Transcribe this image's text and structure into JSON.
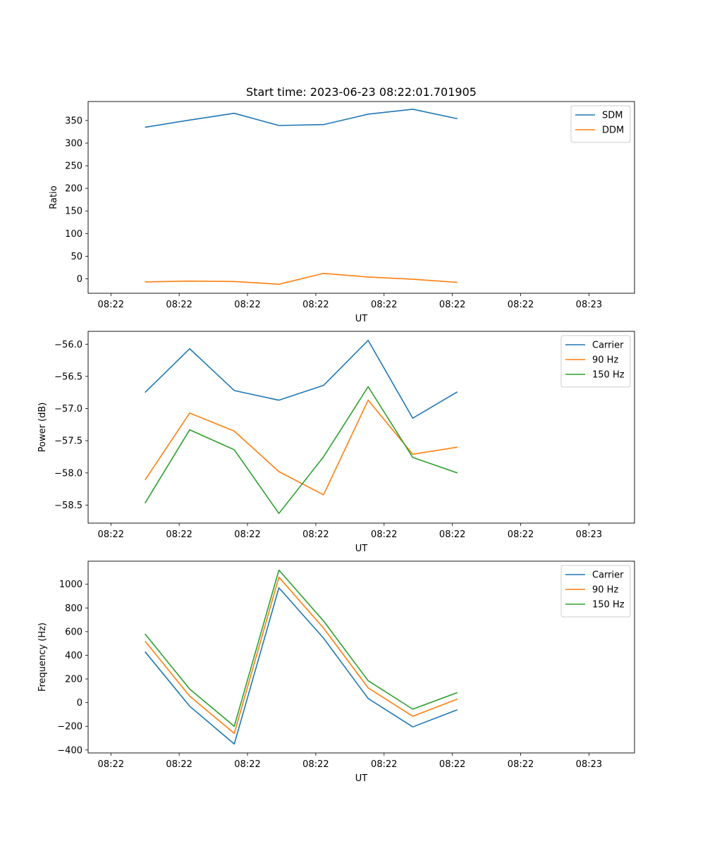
{
  "figure": {
    "title": "Start time: 2023-06-23 08:22:01.701905"
  },
  "chart_data": [
    {
      "type": "line",
      "title": "Start time: 2023-06-23 08:22:01.701905",
      "xlabel": "UT",
      "ylabel": "Ratio",
      "xlim": [
        0,
        12
      ],
      "ylim": [
        -32,
        392
      ],
      "x_ticks": [
        {
          "v": 0.5,
          "label": "08:22"
        },
        {
          "v": 2.0,
          "label": "08:22"
        },
        {
          "v": 3.5,
          "label": "08:22"
        },
        {
          "v": 5.0,
          "label": "08:22"
        },
        {
          "v": 6.5,
          "label": "08:22"
        },
        {
          "v": 8.0,
          "label": "08:22"
        },
        {
          "v": 9.5,
          "label": "08:22"
        },
        {
          "v": 11.0,
          "label": "08:23"
        }
      ],
      "y_ticks": [
        0,
        50,
        100,
        150,
        200,
        250,
        300,
        350
      ],
      "x": [
        1.25,
        2.23,
        3.21,
        4.19,
        5.17,
        6.15,
        7.13,
        8.11
      ],
      "series": [
        {
          "name": "SDM",
          "color": "#1f77b4",
          "values": [
            335,
            351,
            366,
            339,
            341,
            364,
            375,
            354
          ]
        },
        {
          "name": "DDM",
          "color": "#ff7f0e",
          "values": [
            -7,
            -5,
            -6,
            -12,
            12,
            4,
            -1,
            -8
          ]
        }
      ],
      "legend": "top-right",
      "grid": false
    },
    {
      "type": "line",
      "title": "",
      "xlabel": "UT",
      "ylabel": "Power (dB)",
      "xlim": [
        0,
        12
      ],
      "ylim": [
        -58.78,
        -55.8
      ],
      "x_ticks": [
        {
          "v": 0.5,
          "label": "08:22"
        },
        {
          "v": 2.0,
          "label": "08:22"
        },
        {
          "v": 3.5,
          "label": "08:22"
        },
        {
          "v": 5.0,
          "label": "08:22"
        },
        {
          "v": 6.5,
          "label": "08:22"
        },
        {
          "v": 8.0,
          "label": "08:22"
        },
        {
          "v": 9.5,
          "label": "08:22"
        },
        {
          "v": 11.0,
          "label": "08:23"
        }
      ],
      "y_ticks": [
        -58.5,
        -58.0,
        -57.5,
        -57.0,
        -56.5,
        -56.0
      ],
      "y_tick_labels": [
        "−58.5",
        "−58.0",
        "−57.5",
        "−57.0",
        "−56.5",
        "−56.0"
      ],
      "x": [
        1.25,
        2.23,
        3.21,
        4.19,
        5.17,
        6.15,
        7.13,
        8.11
      ],
      "series": [
        {
          "name": "Carrier",
          "color": "#1f77b4",
          "values": [
            -56.75,
            -56.07,
            -56.72,
            -56.87,
            -56.64,
            -55.94,
            -57.15,
            -56.74
          ]
        },
        {
          "name": "90 Hz",
          "color": "#ff7f0e",
          "values": [
            -58.11,
            -57.07,
            -57.35,
            -57.98,
            -58.34,
            -56.87,
            -57.71,
            -57.6
          ]
        },
        {
          "name": "150 Hz",
          "color": "#2ca02c",
          "values": [
            -58.47,
            -57.33,
            -57.64,
            -58.63,
            -57.75,
            -56.66,
            -57.76,
            -58.0
          ]
        }
      ],
      "legend": "top-right",
      "grid": false
    },
    {
      "type": "line",
      "title": "",
      "xlabel": "UT",
      "ylabel": "Frequency (Hz)",
      "xlim": [
        0,
        12
      ],
      "ylim": [
        -425,
        1195
      ],
      "x_ticks": [
        {
          "v": 0.5,
          "label": "08:22"
        },
        {
          "v": 2.0,
          "label": "08:22"
        },
        {
          "v": 3.5,
          "label": "08:22"
        },
        {
          "v": 5.0,
          "label": "08:22"
        },
        {
          "v": 6.5,
          "label": "08:22"
        },
        {
          "v": 8.0,
          "label": "08:22"
        },
        {
          "v": 9.5,
          "label": "08:22"
        },
        {
          "v": 11.0,
          "label": "08:23"
        }
      ],
      "y_ticks": [
        -400,
        -200,
        0,
        200,
        400,
        600,
        800,
        1000
      ],
      "y_tick_labels": [
        "−400",
        "−200",
        "0",
        "200",
        "400",
        "600",
        "800",
        "1000"
      ],
      "x": [
        1.25,
        2.23,
        3.21,
        4.19,
        5.17,
        6.15,
        7.13,
        8.11
      ],
      "series": [
        {
          "name": "Carrier",
          "color": "#1f77b4",
          "values": [
            430,
            -30,
            -350,
            970,
            545,
            35,
            -205,
            -60
          ]
        },
        {
          "name": "90 Hz",
          "color": "#ff7f0e",
          "values": [
            520,
            55,
            -260,
            1060,
            630,
            125,
            -115,
            30
          ]
        },
        {
          "name": "150 Hz",
          "color": "#2ca02c",
          "values": [
            580,
            115,
            -200,
            1120,
            690,
            185,
            -55,
            85
          ]
        }
      ],
      "legend": "top-right",
      "grid": false
    }
  ]
}
